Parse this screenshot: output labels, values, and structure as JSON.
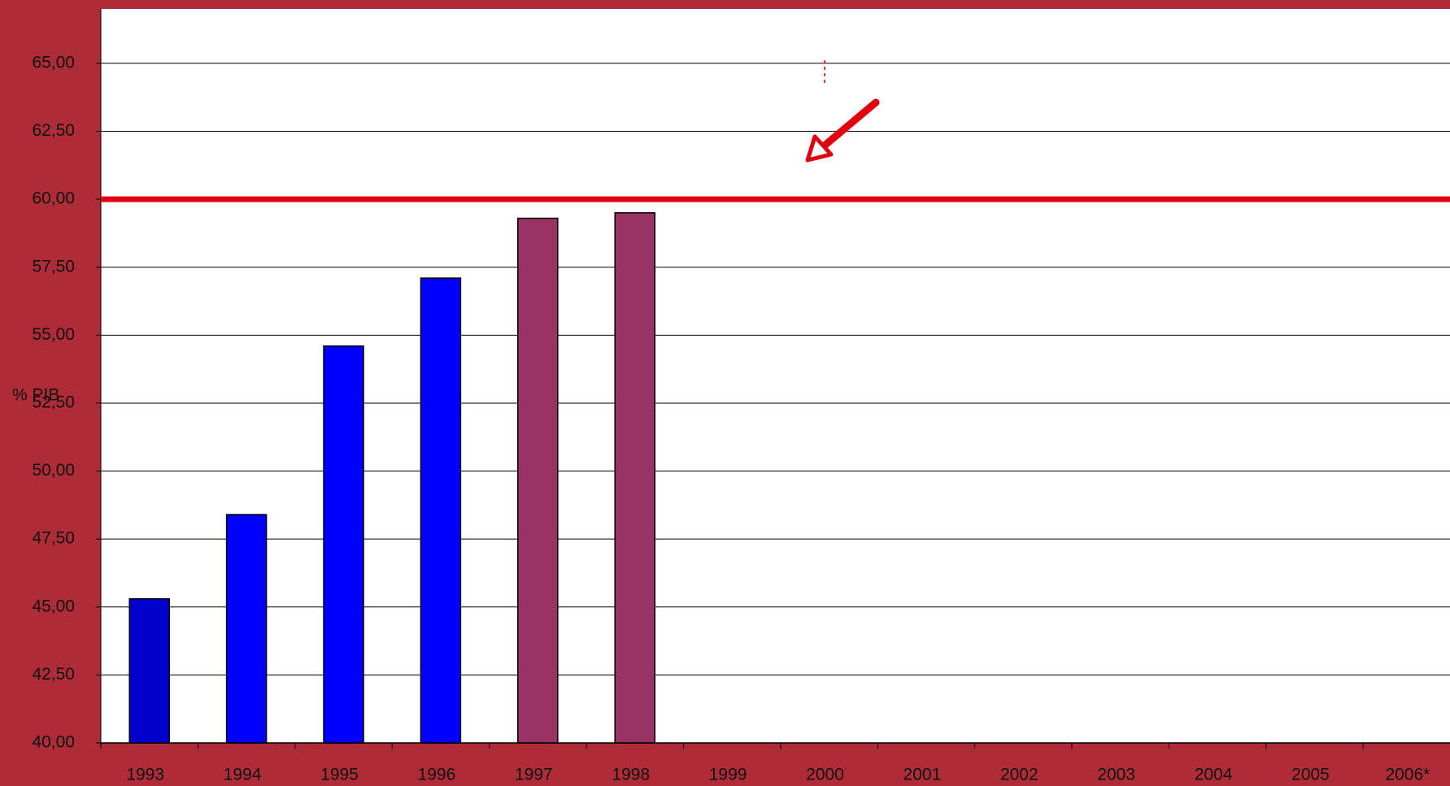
{
  "chart_data": {
    "type": "bar",
    "y_axis_label": "% PIB",
    "categories": [
      "1993",
      "1994",
      "1995",
      "1996",
      "1997",
      "1998",
      "1999",
      "2000",
      "2001",
      "2002",
      "2003",
      "2004",
      "2005",
      "2006*"
    ],
    "values": [
      45.3,
      48.4,
      54.6,
      57.1,
      59.3,
      59.5,
      null,
      null,
      null,
      null,
      null,
      null,
      null,
      null
    ],
    "colors": [
      "#0000cc",
      "#0000ff",
      "#0000ff",
      "#0000ff",
      "#993366",
      "#993366",
      null,
      null,
      null,
      null,
      null,
      null,
      null,
      null
    ],
    "ylim": [
      40,
      67
    ],
    "yticks": [
      {
        "value": 40,
        "label": "40,00"
      },
      {
        "value": 42.5,
        "label": "42,50"
      },
      {
        "value": 45,
        "label": "45,00"
      },
      {
        "value": 47.5,
        "label": "47,50"
      },
      {
        "value": 50,
        "label": "50,00"
      },
      {
        "value": 52.5,
        "label": "52,50"
      },
      {
        "value": 55,
        "label": "55,00"
      },
      {
        "value": 57.5,
        "label": "57,50"
      },
      {
        "value": 60,
        "label": "60,00"
      },
      {
        "value": 62.5,
        "label": "62,50"
      },
      {
        "value": 65,
        "label": "65,00"
      }
    ],
    "grid": true,
    "reference_line": {
      "value": 60,
      "color": "#e00010"
    }
  }
}
